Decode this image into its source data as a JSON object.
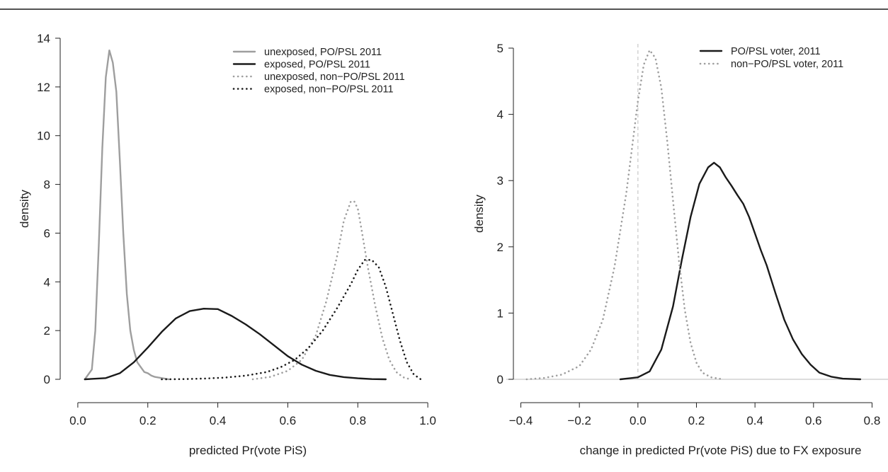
{
  "chart_data": [
    {
      "type": "line",
      "title": "",
      "xlabel": "predicted Pr(vote PiS)",
      "ylabel": "density",
      "xlim": [
        -0.02,
        1.02
      ],
      "ylim": [
        0,
        14
      ],
      "xticks": [
        0.0,
        0.2,
        0.4,
        0.6,
        0.8,
        1.0
      ],
      "xtick_labels": [
        "0.0",
        "0.2",
        "0.4",
        "0.6",
        "0.8",
        "1.0"
      ],
      "yticks": [
        0,
        2,
        4,
        6,
        8,
        10,
        12,
        14
      ],
      "ytick_labels": [
        "0",
        "2",
        "4",
        "6",
        "8",
        "10",
        "12",
        "14"
      ],
      "grid": false,
      "legend_position": "top-right",
      "series": [
        {
          "name": "unexposed, PO/PSL 2011",
          "color": "#9e9e9e",
          "dash": "solid",
          "x": [
            0.02,
            0.04,
            0.05,
            0.06,
            0.07,
            0.08,
            0.09,
            0.1,
            0.11,
            0.12,
            0.13,
            0.14,
            0.15,
            0.16,
            0.17,
            0.18,
            0.19,
            0.2,
            0.21,
            0.22,
            0.24,
            0.26
          ],
          "y": [
            0.0,
            0.4,
            2.0,
            5.5,
            9.5,
            12.4,
            13.5,
            13.0,
            11.8,
            9.0,
            6.0,
            3.5,
            2.0,
            1.2,
            0.7,
            0.5,
            0.3,
            0.25,
            0.15,
            0.1,
            0.05,
            0.0
          ]
        },
        {
          "name": "exposed, PO/PSL 2011",
          "color": "#1a1a1a",
          "dash": "solid",
          "x": [
            0.02,
            0.08,
            0.12,
            0.16,
            0.2,
            0.24,
            0.28,
            0.32,
            0.36,
            0.4,
            0.44,
            0.48,
            0.52,
            0.56,
            0.6,
            0.64,
            0.68,
            0.72,
            0.76,
            0.8,
            0.84,
            0.88
          ],
          "y": [
            0.0,
            0.05,
            0.25,
            0.7,
            1.3,
            1.95,
            2.5,
            2.8,
            2.9,
            2.88,
            2.6,
            2.25,
            1.85,
            1.4,
            0.95,
            0.6,
            0.35,
            0.18,
            0.09,
            0.04,
            0.01,
            0.0
          ]
        },
        {
          "name": "unexposed, non−PO/PSL 2011",
          "color": "#9e9e9e",
          "dash": "dotted",
          "x": [
            0.5,
            0.55,
            0.6,
            0.64,
            0.68,
            0.71,
            0.74,
            0.76,
            0.78,
            0.79,
            0.8,
            0.81,
            0.83,
            0.85,
            0.87,
            0.89,
            0.91,
            0.93,
            0.95
          ],
          "y": [
            0.0,
            0.1,
            0.35,
            0.8,
            1.8,
            3.2,
            5.0,
            6.5,
            7.3,
            7.3,
            7.0,
            6.2,
            4.5,
            3.0,
            1.7,
            0.8,
            0.3,
            0.08,
            0.0
          ]
        },
        {
          "name": "exposed, non−PO/PSL 2011",
          "color": "#1a1a1a",
          "dash": "dotted",
          "x": [
            0.24,
            0.3,
            0.36,
            0.42,
            0.48,
            0.54,
            0.58,
            0.62,
            0.66,
            0.7,
            0.74,
            0.78,
            0.8,
            0.82,
            0.84,
            0.86,
            0.88,
            0.9,
            0.92,
            0.94,
            0.96,
            0.98
          ],
          "y": [
            0.0,
            0.01,
            0.03,
            0.07,
            0.15,
            0.3,
            0.5,
            0.8,
            1.3,
            2.0,
            2.9,
            3.9,
            4.5,
            4.9,
            4.9,
            4.6,
            3.8,
            2.7,
            1.6,
            0.7,
            0.2,
            0.0
          ]
        }
      ]
    },
    {
      "type": "line",
      "title": "",
      "xlabel": "change in predicted Pr(vote PiS) due to FX exposure",
      "ylabel": "density",
      "xlim": [
        -0.44,
        0.84
      ],
      "ylim": [
        0,
        5
      ],
      "xticks": [
        -0.4,
        -0.2,
        0.0,
        0.2,
        0.4,
        0.6,
        0.8
      ],
      "xtick_labels": [
        "−0.4",
        "−0.2",
        "0.0",
        "0.2",
        "0.4",
        "0.6",
        "0.8"
      ],
      "yticks": [
        0,
        1,
        2,
        3,
        4,
        5
      ],
      "ytick_labels": [
        "0",
        "1",
        "2",
        "3",
        "4",
        "5"
      ],
      "grid": false,
      "legend_position": "top-right",
      "reference_line_x": 0,
      "series": [
        {
          "name": "PO/PSL voter, 2011",
          "color": "#1a1a1a",
          "dash": "solid",
          "x": [
            -0.06,
            0.0,
            0.04,
            0.08,
            0.12,
            0.15,
            0.18,
            0.21,
            0.24,
            0.26,
            0.28,
            0.3,
            0.32,
            0.34,
            0.36,
            0.38,
            0.4,
            0.42,
            0.44,
            0.47,
            0.5,
            0.53,
            0.56,
            0.59,
            0.62,
            0.66,
            0.7,
            0.76
          ],
          "y": [
            0.0,
            0.03,
            0.12,
            0.45,
            1.1,
            1.8,
            2.45,
            2.95,
            3.2,
            3.27,
            3.2,
            3.05,
            2.92,
            2.78,
            2.65,
            2.45,
            2.2,
            1.95,
            1.72,
            1.3,
            0.9,
            0.6,
            0.38,
            0.22,
            0.1,
            0.04,
            0.01,
            0.0
          ]
        },
        {
          "name": "non−PO/PSL voter, 2011",
          "color": "#9e9e9e",
          "dash": "dotted",
          "x": [
            -0.38,
            -0.32,
            -0.26,
            -0.2,
            -0.16,
            -0.12,
            -0.08,
            -0.04,
            -0.02,
            0.0,
            0.02,
            0.04,
            0.06,
            0.08,
            0.1,
            0.12,
            0.14,
            0.16,
            0.18,
            0.2,
            0.22,
            0.25,
            0.29
          ],
          "y": [
            0.0,
            0.02,
            0.07,
            0.2,
            0.45,
            0.9,
            1.7,
            2.8,
            3.5,
            4.2,
            4.75,
            4.97,
            4.85,
            4.4,
            3.6,
            2.7,
            1.8,
            1.05,
            0.55,
            0.25,
            0.1,
            0.03,
            0.0
          ]
        }
      ]
    }
  ]
}
